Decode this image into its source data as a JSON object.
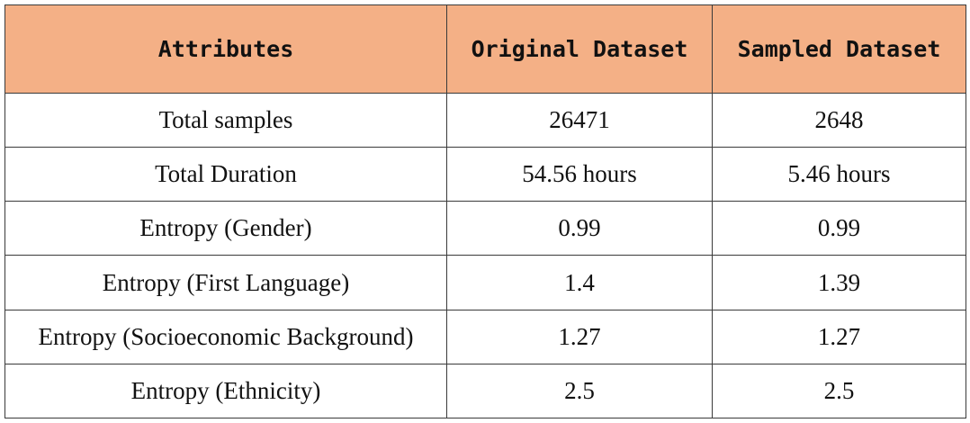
{
  "header": {
    "col1": "Attributes",
    "col2": "Original Dataset",
    "col3": "Sampled Dataset"
  },
  "rows": [
    {
      "attribute": "Total samples",
      "original": "26471",
      "sampled": "2648"
    },
    {
      "attribute": "Total Duration",
      "original": "54.56 hours",
      "sampled": "5.46 hours"
    },
    {
      "attribute": "Entropy (Gender)",
      "original": "0.99",
      "sampled": "0.99"
    },
    {
      "attribute": "Entropy (First Language)",
      "original": "1.4",
      "sampled": "1.39"
    },
    {
      "attribute": "Entropy (Socioeconomic Background)",
      "original": "1.27",
      "sampled": "1.27"
    },
    {
      "attribute": "Entropy (Ethnicity)",
      "original": "2.5",
      "sampled": "2.5"
    }
  ],
  "colors": {
    "header_bg": "#f4b086",
    "border": "#3a3a3a"
  }
}
